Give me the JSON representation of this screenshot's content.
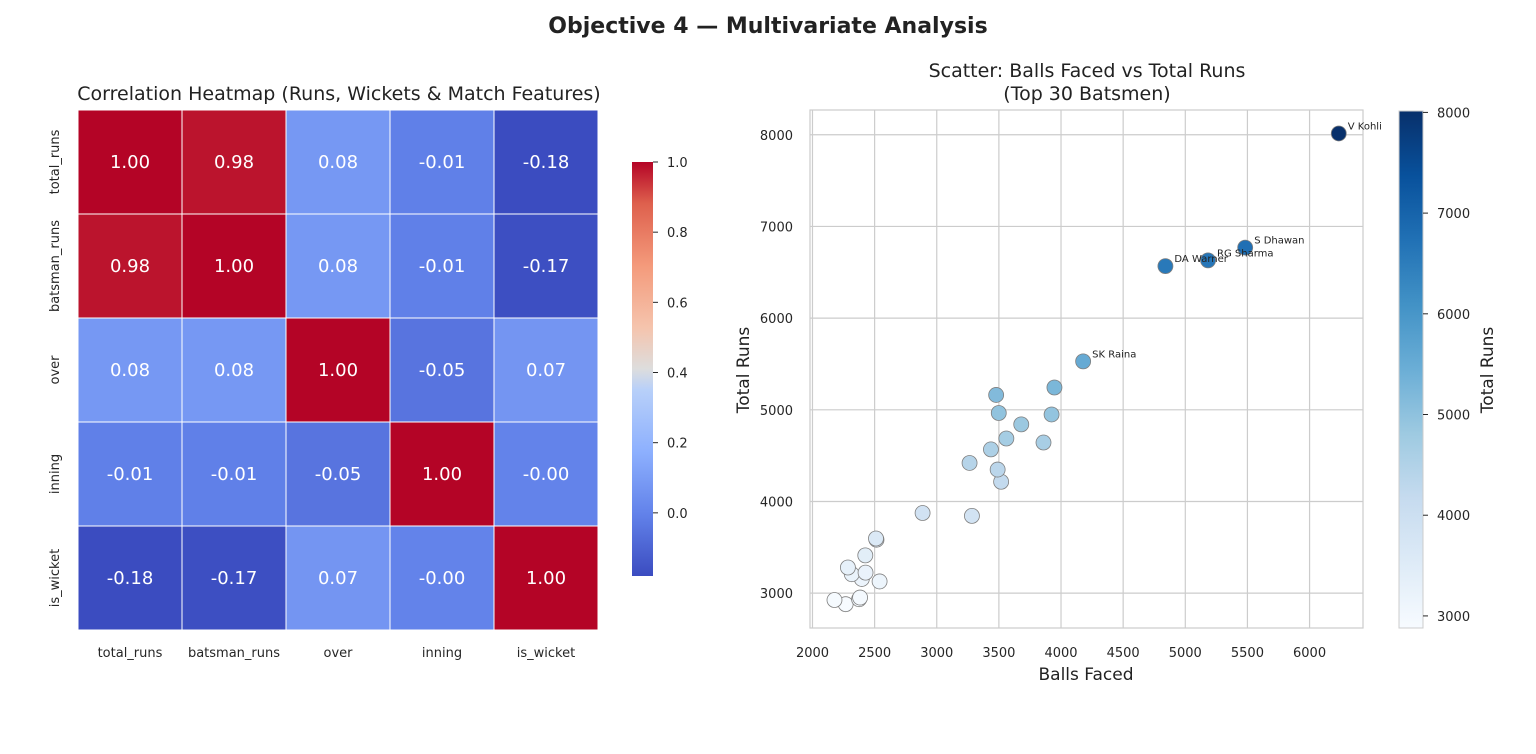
{
  "suptitle": "Objective 4 — Multivariate Analysis",
  "chart_data": [
    {
      "type": "heatmap",
      "title": "Correlation Heatmap (Runs, Wickets & Match Features)",
      "categories": [
        "total_runs",
        "batsman_runs",
        "over",
        "inning",
        "is_wicket"
      ],
      "values": [
        [
          1.0,
          0.98,
          0.08,
          -0.01,
          -0.18
        ],
        [
          0.98,
          1.0,
          0.08,
          -0.01,
          -0.17
        ],
        [
          0.08,
          0.08,
          1.0,
          -0.05,
          0.07
        ],
        [
          -0.01,
          -0.01,
          -0.05,
          1.0,
          -0.0
        ],
        [
          -0.18,
          -0.17,
          0.07,
          -0.0,
          1.0
        ]
      ],
      "labels": [
        [
          "1.00",
          "0.98",
          "0.08",
          "-0.01",
          "-0.18"
        ],
        [
          "0.98",
          "1.00",
          "0.08",
          "-0.01",
          "-0.17"
        ],
        [
          "0.08",
          "0.08",
          "1.00",
          "-0.05",
          "0.07"
        ],
        [
          "-0.01",
          "-0.01",
          "-0.05",
          "1.00",
          "-0.00"
        ],
        [
          "-0.18",
          "-0.17",
          "0.07",
          "-0.00",
          "1.00"
        ]
      ],
      "colormap": "coolwarm",
      "colorbar": {
        "range": [
          -0.18,
          1.0
        ],
        "ticks": [
          0.0,
          0.2,
          0.4,
          0.6,
          0.8,
          1.0
        ],
        "tick_labels": [
          "0.0",
          "0.2",
          "0.4",
          "0.6",
          "0.8",
          "1.0"
        ]
      }
    },
    {
      "type": "scatter",
      "title_lines": [
        "Scatter: Balls Faced vs Total Runs",
        "(Top 30 Batsmen)"
      ],
      "xlabel": "Balls Faced",
      "ylabel": "Total Runs",
      "xlim": [
        1980,
        6430
      ],
      "ylim": [
        2620,
        8270
      ],
      "xticks": [
        2000,
        2500,
        3000,
        3500,
        4000,
        4500,
        5000,
        5500,
        6000,
        6500
      ],
      "yticks": [
        3000,
        4000,
        5000,
        6000,
        7000,
        8000
      ],
      "grid": true,
      "colormap": "Blues",
      "colorbar": {
        "label": "Total Runs",
        "range": [
          2880,
          8014
        ],
        "ticks": [
          3000,
          4000,
          5000,
          6000,
          7000,
          8000
        ],
        "tick_labels": [
          "3000",
          "4000",
          "5000",
          "6000",
          "7000",
          "8000"
        ]
      },
      "points": [
        {
          "x": 6235,
          "y": 8014,
          "label": "V Kohli"
        },
        {
          "x": 5482,
          "y": 6769,
          "label": "S Dhawan"
        },
        {
          "x": 5183,
          "y": 6630,
          "label": "RG Sharma"
        },
        {
          "x": 4840,
          "y": 6567,
          "label": "DA Warner"
        },
        {
          "x": 4178,
          "y": 5528,
          "label": "SK Raina"
        },
        {
          "x": 3947,
          "y": 5243,
          "label": ""
        },
        {
          "x": 3478,
          "y": 5162,
          "label": ""
        },
        {
          "x": 3499,
          "y": 4965,
          "label": ""
        },
        {
          "x": 3924,
          "y": 4949,
          "label": ""
        },
        {
          "x": 3680,
          "y": 4841,
          "label": ""
        },
        {
          "x": 3560,
          "y": 4687,
          "label": ""
        },
        {
          "x": 3859,
          "y": 4643,
          "label": ""
        },
        {
          "x": 3436,
          "y": 4568,
          "label": ""
        },
        {
          "x": 3264,
          "y": 4420,
          "label": ""
        },
        {
          "x": 3490,
          "y": 4348,
          "label": ""
        },
        {
          "x": 3518,
          "y": 4215,
          "label": ""
        },
        {
          "x": 2886,
          "y": 3874,
          "label": ""
        },
        {
          "x": 3283,
          "y": 3843,
          "label": ""
        },
        {
          "x": 2511,
          "y": 3596,
          "label": ""
        },
        {
          "x": 2515,
          "y": 3583,
          "label": ""
        },
        {
          "x": 2425,
          "y": 3412,
          "label": ""
        },
        {
          "x": 2285,
          "y": 3280,
          "label": ""
        },
        {
          "x": 2316,
          "y": 3207,
          "label": ""
        },
        {
          "x": 2427,
          "y": 3224,
          "label": ""
        },
        {
          "x": 2397,
          "y": 3155,
          "label": ""
        },
        {
          "x": 2540,
          "y": 3128,
          "label": ""
        },
        {
          "x": 2383,
          "y": 2952,
          "label": ""
        },
        {
          "x": 2375,
          "y": 2934,
          "label": ""
        },
        {
          "x": 2177,
          "y": 2925,
          "label": ""
        },
        {
          "x": 2267,
          "y": 2880,
          "label": ""
        }
      ]
    }
  ]
}
